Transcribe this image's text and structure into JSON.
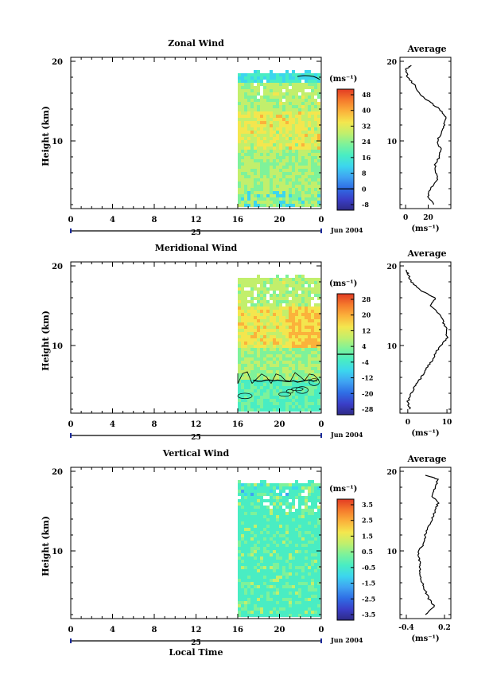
{
  "chart_data": [
    {
      "type": "heatmap",
      "title": "Zonal Wind",
      "ylabel": "Height (km)",
      "yticks": [
        "20",
        "10"
      ],
      "ylim": [
        1.5,
        20.5
      ],
      "xticks": [
        "0",
        "4",
        "8",
        "12",
        "16",
        "20",
        "0"
      ],
      "xlim": [
        0,
        24
      ],
      "date_label": "25",
      "month_label": "Jun 2004",
      "data_start_hour": 16,
      "units_label": "(ms⁻¹)",
      "colorbar_ticks": [
        "48",
        "40",
        "32",
        "24",
        "16",
        "8",
        "0",
        "-8"
      ],
      "colorbar_range": [
        -12,
        52
      ],
      "contour_level": "0",
      "field_description_values": {
        "low_level_mean": 22,
        "mid_level_mean": 26,
        "upper_level_mean": 12
      },
      "average": {
        "title": "Average",
        "xticks": [
          "0",
          "20"
        ],
        "xlim": [
          -5,
          40
        ],
        "xlabel": "(ms⁻¹)",
        "heights": [
          2,
          3,
          4,
          5,
          6,
          7,
          8,
          9,
          10,
          11,
          12,
          13,
          14,
          15,
          16,
          17,
          18,
          19,
          19.5
        ],
        "values": [
          25,
          20,
          22,
          28,
          27,
          26,
          30,
          31,
          28,
          31,
          34,
          36,
          30,
          20,
          12,
          8,
          2,
          0,
          5
        ]
      }
    },
    {
      "type": "heatmap",
      "title": "Meridional Wind",
      "ylabel": "Height (km)",
      "yticks": [
        "20",
        "10"
      ],
      "ylim": [
        1.5,
        20.5
      ],
      "xticks": [
        "0",
        "4",
        "8",
        "12",
        "16",
        "20",
        "0"
      ],
      "xlim": [
        0,
        24
      ],
      "date_label": "25",
      "month_label": "Jun 2004",
      "data_start_hour": 16,
      "units_label": "(ms⁻¹)",
      "colorbar_ticks": [
        "28",
        "20",
        "12",
        "4",
        "-4",
        "-12",
        "-20",
        "-28"
      ],
      "colorbar_range": [
        -32,
        32
      ],
      "contour_level": "0",
      "average": {
        "title": "Average",
        "xticks": [
          "0",
          "10"
        ],
        "xlim": [
          -2,
          11
        ],
        "xlabel": "(ms⁻¹)",
        "heights": [
          2,
          3,
          4,
          5,
          6,
          7,
          8,
          9,
          10,
          11,
          12,
          13,
          14,
          15,
          16,
          17,
          18,
          19,
          19.5
        ],
        "values": [
          0.5,
          0,
          1,
          2,
          3.5,
          4.5,
          6,
          7,
          8.5,
          10,
          10,
          9,
          8,
          6,
          7,
          3,
          1,
          0,
          -0.5
        ]
      }
    },
    {
      "type": "heatmap",
      "title": "Vertical Wind",
      "ylabel": "Height (km)",
      "yticks": [
        "20",
        "10"
      ],
      "ylim": [
        1.5,
        20.5
      ],
      "xticks": [
        "0",
        "4",
        "8",
        "12",
        "16",
        "20",
        "0"
      ],
      "xlim": [
        0,
        24
      ],
      "date_label": "25",
      "month_label": "Jun 2004",
      "xlabel": "Local Time",
      "data_start_hour": 16,
      "units_label": "(ms⁻¹)",
      "colorbar_ticks": [
        "3.5",
        "2.5",
        "1.5",
        "0.5",
        "-0.5",
        "-1.5",
        "-2.5",
        "-3.5"
      ],
      "colorbar_range": [
        -4,
        4
      ],
      "average": {
        "title": "Average",
        "xticks": [
          "-0.4",
          "0.2"
        ],
        "xlim": [
          -0.5,
          0.3
        ],
        "xlabel": "(ms⁻¹)",
        "heights": [
          2,
          3,
          4,
          5,
          6,
          7,
          8,
          9,
          10,
          11,
          12,
          13,
          14,
          15,
          16,
          17,
          18,
          19,
          19.5
        ],
        "values": [
          -0.1,
          0.05,
          -0.05,
          -0.1,
          -0.15,
          -0.2,
          -0.18,
          -0.2,
          -0.2,
          -0.12,
          -0.1,
          -0.05,
          0.0,
          0.05,
          0.1,
          0.0,
          0.05,
          0.1,
          -0.1
        ]
      }
    }
  ],
  "colors": {
    "colormap": [
      "#2e2a86",
      "#3a3fc9",
      "#2f6ee5",
      "#3fa3f2",
      "#3cd6ee",
      "#49edc3",
      "#7ef29a",
      "#c2ef6c",
      "#f4e64e",
      "#fbb23b",
      "#f57a2c",
      "#e23b23"
    ],
    "contour": "#000000",
    "axis": "#000000"
  }
}
